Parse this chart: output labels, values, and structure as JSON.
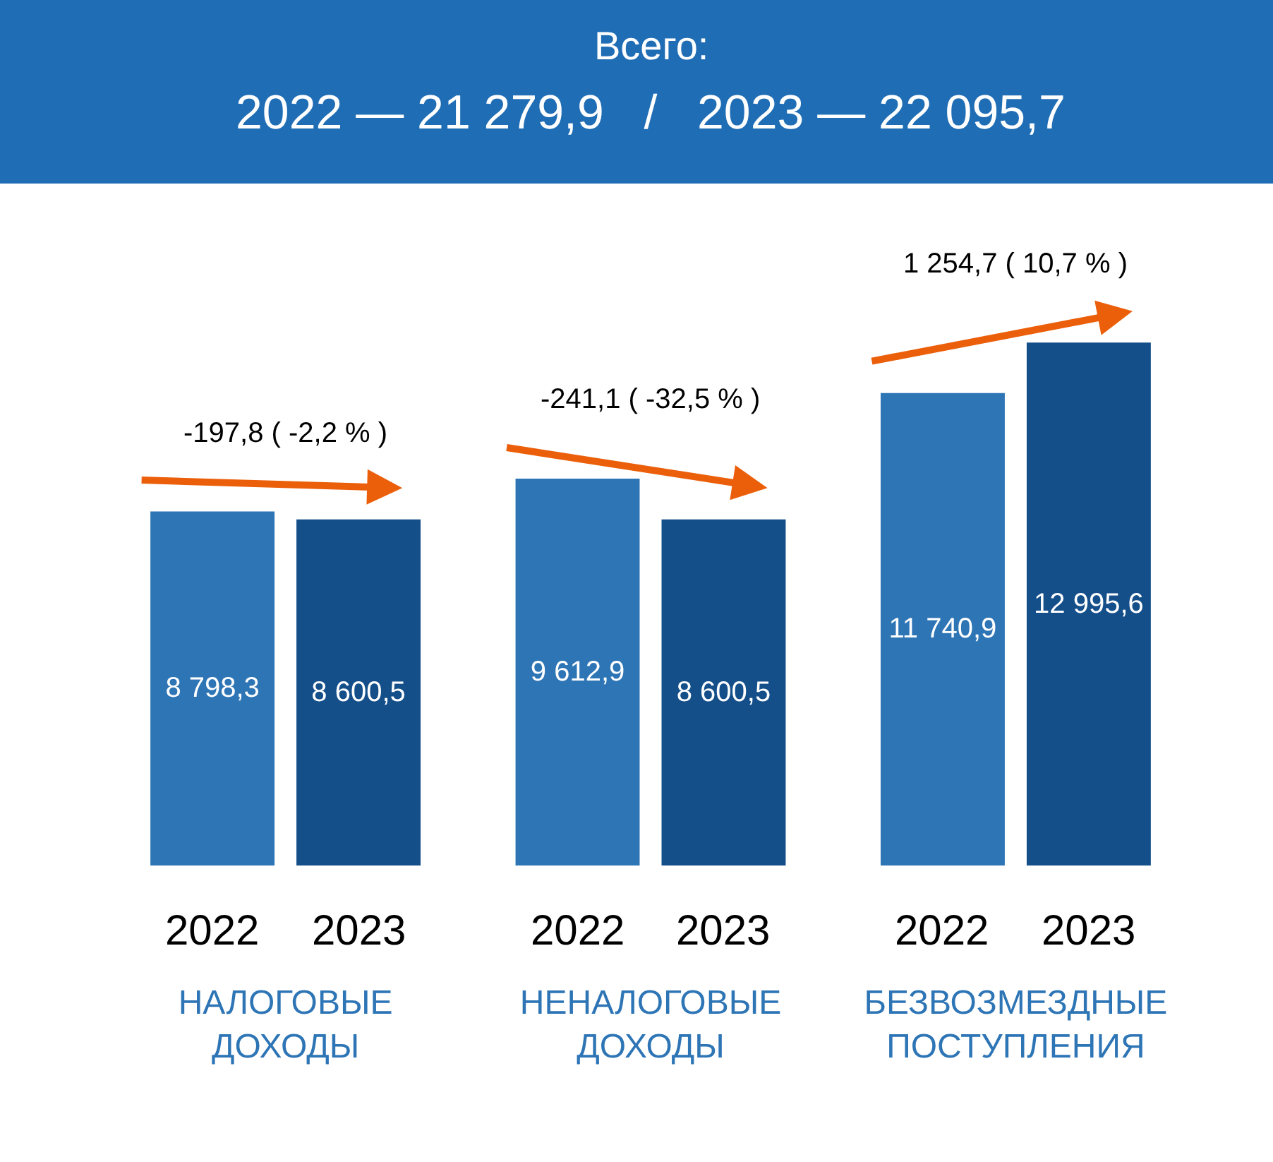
{
  "chart_data": {
    "type": "bar",
    "title": "Всего:",
    "subtitle": "2022 — 21 279,9   /   2023 — 22 095,7",
    "categories": [
      "НАЛОГОВЫЕ ДОХОДЫ",
      "НЕНАЛОГОВЫЕ ДОХОДЫ",
      "БЕЗВОЗМЕЗДНЫЕ ПОСТУПЛЕНИЯ"
    ],
    "series": [
      {
        "name": "2022",
        "color": "#2e75b6",
        "values": [
          8798.3,
          9612.9,
          11740.9
        ],
        "value_labels": [
          "8 798,3",
          "9 612,9",
          "11 740,9"
        ]
      },
      {
        "name": "2023",
        "color": "#144f8a",
        "values": [
          8600.5,
          8600.5,
          12995.6
        ],
        "value_labels": [
          "8 600,5",
          "8 600,5",
          "12 995,6"
        ]
      }
    ],
    "annotations": [
      "-197,8 ( -2,2 % )",
      "-241,1 ( -32,5 % )",
      "1 254,7 ( 10,7 % )"
    ],
    "legend": false
  }
}
